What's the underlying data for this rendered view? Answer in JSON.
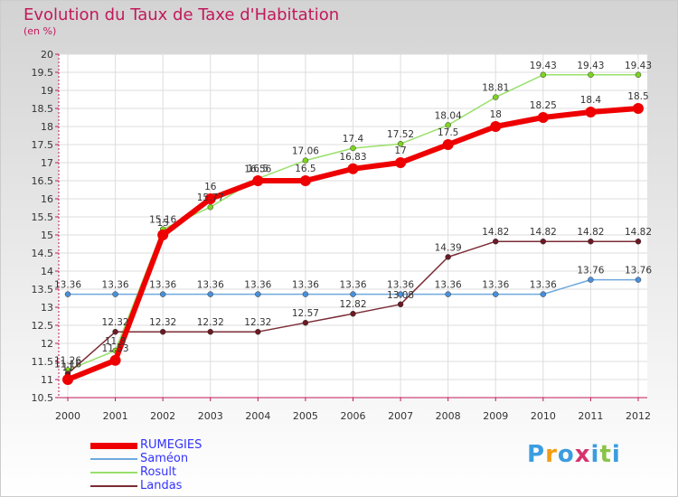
{
  "title": "Evolution du Taux de Taxe d'Habitation",
  "unit_label": "(en %)",
  "logo": {
    "text": "Proxiti",
    "letters": [
      "P",
      "r",
      "o",
      "x",
      "i",
      "t",
      "i"
    ],
    "colors": [
      "#3b9de0",
      "#f39c12",
      "#3b9de0",
      "#d6336c",
      "#3b9de0",
      "#8bc34a",
      "#3b9de0"
    ]
  },
  "chart_data": {
    "type": "line",
    "x": [
      2000,
      2001,
      2002,
      2003,
      2004,
      2005,
      2006,
      2007,
      2008,
      2009,
      2010,
      2011,
      2012
    ],
    "ylim": [
      10.5,
      20
    ],
    "yticks": [
      10.5,
      11,
      11.5,
      12,
      12.5,
      13,
      13.5,
      14,
      14.5,
      15,
      15.5,
      16,
      16.5,
      17,
      17.5,
      18,
      18.5,
      19,
      19.5,
      20
    ],
    "grid": true,
    "legend_position": "bottom-left",
    "series": [
      {
        "name": "RUMEGIES",
        "color": "#ee0000",
        "values": [
          11,
          11.53,
          15,
          16,
          16.5,
          16.5,
          16.83,
          17,
          17.5,
          18,
          18.25,
          18.4,
          18.5
        ],
        "labels": [
          "11",
          "11.53",
          "15",
          "16",
          "16.5",
          "16.5",
          "16.83",
          "17",
          "17.5",
          "18",
          "18.25",
          "18.4",
          "18.5"
        ]
      },
      {
        "name": "Saméon",
        "color": "#6fa8dc",
        "values": [
          13.36,
          13.36,
          13.36,
          13.36,
          13.36,
          13.36,
          13.36,
          13.36,
          13.36,
          13.36,
          13.36,
          13.76,
          13.76
        ],
        "labels": [
          "13.36",
          "13.36",
          "13.36",
          "13.36",
          "13.36",
          "13.36",
          "13.36",
          "13.36",
          "13.36",
          "13.36",
          "13.36",
          "13.76",
          "13.76"
        ]
      },
      {
        "name": "Rosult",
        "color": "#99e06b",
        "values": [
          11.26,
          11.8,
          15.16,
          15.77,
          16.56,
          17.06,
          17.4,
          17.52,
          18.04,
          18.81,
          19.43,
          19.43,
          19.43
        ],
        "labels": [
          "11.26",
          "11.8",
          "15.16",
          "15.77",
          "16.56",
          "17.06",
          "17.4",
          "17.52",
          "18.04",
          "18.81",
          "19.43",
          "19.43",
          "19.43"
        ]
      },
      {
        "name": "Landas",
        "color": "#7b2c35",
        "values": [
          11.16,
          12.32,
          12.32,
          12.32,
          12.32,
          12.57,
          12.82,
          13.08,
          14.39,
          14.82,
          14.82,
          14.82,
          14.82
        ],
        "labels": [
          "11.16",
          "12.32",
          "12.32",
          "12.32",
          "12.32",
          "12.57",
          "12.82",
          "13.08",
          "14.39",
          "14.82",
          "14.82",
          "14.82",
          "14.82"
        ]
      }
    ]
  }
}
